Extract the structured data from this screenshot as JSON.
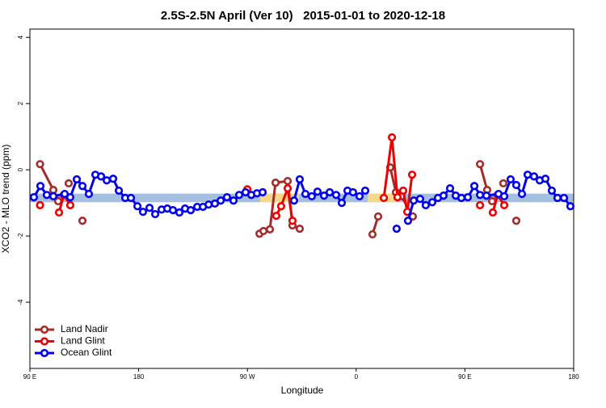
{
  "chart_data": {
    "type": "line",
    "title": "2.5S-2.5N April (Ver 10)   2015-01-01 to 2020-12-18",
    "x_label": "Longitude",
    "y_label": "XCO2 - MLO trend (ppm)",
    "xlim": [
      90,
      540
    ],
    "ylim": [
      -6,
      4.25
    ],
    "xticks": [
      {
        "value": 90,
        "label": "90 E"
      },
      180,
      {
        "value": 270,
        "label": "90 W"
      },
      {
        "value": 360,
        "label": "0"
      },
      {
        "value": 450,
        "label": "90 E"
      },
      {
        "value": 540,
        "label": "180"
      }
    ],
    "yticks": [
      -4,
      -2,
      0,
      2,
      4
    ],
    "legend": "bottom-left",
    "reference_band": {
      "ylim": [
        -0.98,
        -0.72
      ],
      "color": "#a4bfe0"
    },
    "highlight_bands": {
      "x": [
        [
          280.6,
          312.7
        ],
        [
          369.5,
          392.9
        ]
      ],
      "color": "#f5d88a"
    },
    "series": [
      {
        "name": "Land Nadir",
        "color": "#a52a2a",
        "x": [
          98.4,
          109.4,
          113.4,
          null,
          122.1,
          null,
          133.5,
          null,
          280.0,
          283.3,
          288.6,
          293.3,
          303.3,
          307.3,
          313.3,
          null,
          373.5,
          378.2,
          null,
          388.2,
          392.9,
          397.6,
          406.9,
          null,
          462.5,
          468.4,
          472.5,
          null,
          481.8,
          null,
          492.5
        ],
        "values": [
          0.17,
          -0.61,
          -0.95,
          null,
          -0.41,
          null,
          -1.54,
          null,
          -1.93,
          -1.85,
          -1.8,
          -0.39,
          -0.34,
          -1.68,
          -1.78,
          null,
          -1.95,
          -1.41,
          null,
          0.07,
          -0.68,
          -0.8,
          -1.41,
          null,
          0.17,
          -0.61,
          -0.95,
          null,
          -0.41,
          null,
          -1.54
        ]
      },
      {
        "name": "Land Glint",
        "color": "#ee0000",
        "x": [
          98.4,
          null,
          114.1,
          118.1,
          123.4,
          null,
          269.9,
          null,
          293.9,
          297.9,
          303.3,
          307.3,
          null,
          382.9,
          389.6,
          394.2,
          398.9,
          402.3,
          406.3,
          null,
          462.5,
          null,
          473.1,
          477.1,
          482.5
        ],
        "values": [
          -1.07,
          null,
          -1.29,
          -0.76,
          -1.07,
          null,
          -0.59,
          null,
          -1.39,
          -1.1,
          -0.56,
          -1.54,
          null,
          -0.85,
          0.98,
          -0.83,
          -0.63,
          -1.27,
          -0.15,
          null,
          -1.07,
          null,
          -1.29,
          -0.76,
          -1.07
        ]
      },
      {
        "name": "Ocean Glint",
        "color": "#0000ee",
        "x": [
          93.3,
          98.7,
          104.0,
          109.4,
          118.8,
          123.4,
          128.8,
          133.5,
          138.8,
          144.2,
          148.9,
          153.6,
          158.9,
          163.6,
          168.9,
          173.6,
          179.0,
          183.6,
          189.0,
          193.7,
          199.0,
          203.7,
          208.4,
          213.7,
          218.4,
          223.1,
          228.5,
          233.2,
          237.9,
          243.1,
          247.9,
          253.1,
          258.5,
          263.2,
          268.5,
          273.2,
          277.9,
          282.6,
          null,
          308.6,
          313.3,
          318.0,
          323.3,
          328.0,
          333.4,
          338.1,
          343.4,
          348.1,
          352.8,
          357.4,
          362.8,
          367.5,
          null,
          393.5,
          null,
          402.9,
          407.6,
          412.9,
          417.6,
          423.0,
          427.7,
          432.3,
          437.7,
          442.4,
          447.1,
          452.4,
          457.8,
          462.5,
          467.8,
          477.8,
          482.5,
          487.8,
          492.5,
          497.2,
          501.9,
          507.2,
          511.9,
          516.6,
          521.9,
          526.6,
          532.0,
          537.3
        ],
        "values": [
          -0.83,
          -0.49,
          -0.76,
          -0.8,
          -0.73,
          -0.83,
          -0.29,
          -0.49,
          -0.73,
          -0.15,
          -0.2,
          -0.32,
          -0.27,
          -0.63,
          -0.85,
          -0.85,
          -1.1,
          -1.27,
          -1.15,
          -1.34,
          -1.2,
          -1.17,
          -1.22,
          -1.29,
          -1.17,
          -1.22,
          -1.12,
          -1.12,
          -1.05,
          -1.02,
          -0.93,
          -0.83,
          -0.93,
          -0.76,
          -0.68,
          -0.76,
          -0.71,
          -0.68,
          null,
          -0.93,
          -0.29,
          -0.73,
          -0.8,
          -0.66,
          -0.78,
          -0.68,
          -0.76,
          -1.0,
          -0.63,
          -0.68,
          -0.8,
          -0.63,
          null,
          -1.78,
          null,
          -1.54,
          -0.93,
          -0.88,
          -1.07,
          -0.98,
          -0.85,
          -0.78,
          -0.56,
          -0.78,
          -0.85,
          -0.83,
          -0.49,
          -0.76,
          -0.78,
          -0.73,
          -0.8,
          -0.29,
          -0.46,
          -0.73,
          -0.15,
          -0.2,
          -0.32,
          -0.27,
          -0.63,
          -0.85,
          -0.85,
          -1.1
        ]
      }
    ]
  }
}
